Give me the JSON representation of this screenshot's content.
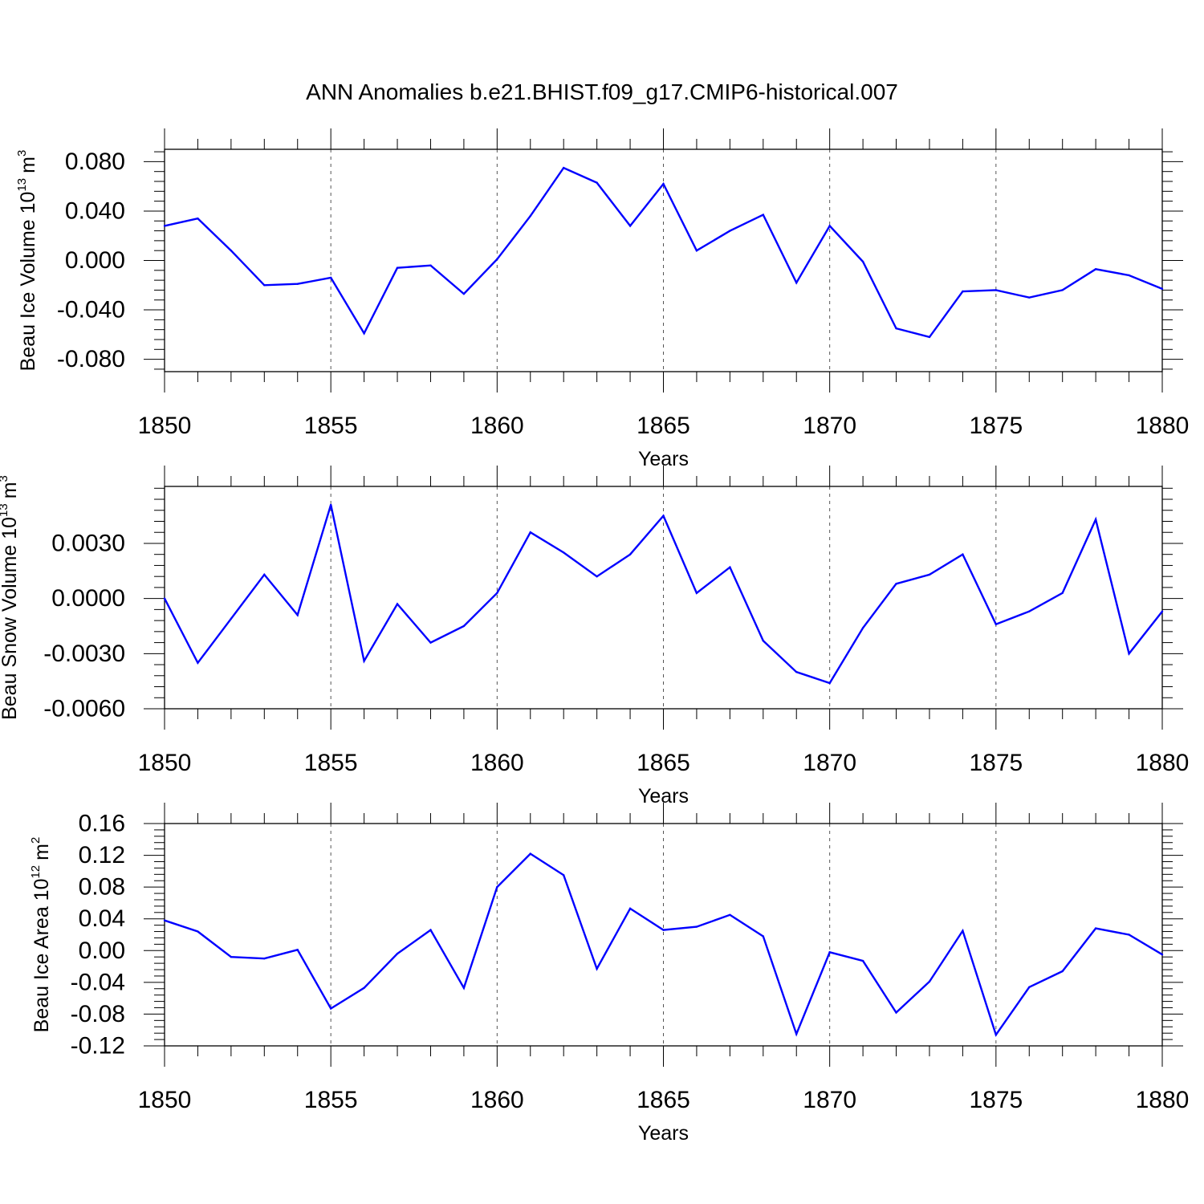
{
  "title": "ANN Anomalies b.e21.BHIST.f09_g17.CMIP6-historical.007",
  "colors": {
    "line": "#0000ff",
    "frame": "#000000",
    "grid": "#555555"
  },
  "chart_data": [
    {
      "type": "line",
      "xlabel": "Years",
      "ylabel_main": "Beau Ice Volume 10",
      "ylabel_exp": "13",
      "ylabel_unit": "m",
      "ylabel_unit_exp": "3",
      "xlim": [
        1850,
        1880
      ],
      "ylim": [
        -0.09,
        0.09
      ],
      "x_ticks": [
        1850,
        1855,
        1860,
        1865,
        1870,
        1875,
        1880
      ],
      "y_ticks": [
        -0.08,
        -0.04,
        0.0,
        0.04,
        0.08
      ],
      "y_tick_labels": [
        "-0.080",
        "-0.040",
        "0.000",
        "0.040",
        "0.080"
      ],
      "x": [
        1850,
        1851,
        1852,
        1853,
        1854,
        1855,
        1856,
        1857,
        1858,
        1859,
        1860,
        1861,
        1862,
        1863,
        1864,
        1865,
        1866,
        1867,
        1868,
        1869,
        1870,
        1871,
        1872,
        1873,
        1874,
        1875,
        1876,
        1877,
        1878,
        1879,
        1880
      ],
      "values": [
        0.028,
        0.034,
        0.008,
        -0.02,
        -0.019,
        -0.014,
        -0.059,
        -0.006,
        -0.004,
        -0.027,
        0.001,
        0.036,
        0.075,
        0.063,
        0.028,
        0.062,
        0.008,
        0.024,
        0.037,
        -0.018,
        0.028,
        -0.001,
        -0.055,
        -0.062,
        -0.025,
        -0.024,
        -0.03,
        -0.024,
        -0.007,
        -0.012,
        -0.023
      ]
    },
    {
      "type": "line",
      "xlabel": "Years",
      "ylabel_main": "Beau Snow Volume 10",
      "ylabel_exp": "13",
      "ylabel_unit": "m",
      "ylabel_unit_exp": "3",
      "xlim": [
        1850,
        1880
      ],
      "ylim": [
        -0.006,
        0.0061
      ],
      "x_ticks": [
        1850,
        1855,
        1860,
        1865,
        1870,
        1875,
        1880
      ],
      "y_ticks": [
        -0.006,
        -0.003,
        0.0,
        0.003
      ],
      "y_tick_labels": [
        "-0.0060",
        "-0.0030",
        "0.0000",
        "0.0030"
      ],
      "x": [
        1850,
        1851,
        1852,
        1853,
        1854,
        1855,
        1856,
        1857,
        1858,
        1859,
        1860,
        1861,
        1862,
        1863,
        1864,
        1865,
        1866,
        1867,
        1868,
        1869,
        1870,
        1871,
        1872,
        1873,
        1874,
        1875,
        1876,
        1877,
        1878,
        1879,
        1880
      ],
      "values": [
        0.0,
        -0.0035,
        -0.0011,
        0.0013,
        -0.0009,
        0.0051,
        -0.0034,
        -0.0003,
        -0.0024,
        -0.0015,
        0.0003,
        0.0036,
        0.0025,
        0.0012,
        0.0024,
        0.0045,
        0.0003,
        0.0017,
        -0.0023,
        -0.004,
        -0.0046,
        -0.0016,
        0.0008,
        0.0013,
        0.0024,
        -0.0014,
        -0.0007,
        0.0003,
        0.0043,
        -0.003,
        -0.0007
      ]
    },
    {
      "type": "line",
      "xlabel": "Years",
      "ylabel_main": "Beau Ice Area 10",
      "ylabel_exp": "12",
      "ylabel_unit": "m",
      "ylabel_unit_exp": "2",
      "xlim": [
        1850,
        1880
      ],
      "ylim": [
        -0.12,
        0.16
      ],
      "x_ticks": [
        1850,
        1855,
        1860,
        1865,
        1870,
        1875,
        1880
      ],
      "y_ticks": [
        -0.12,
        -0.08,
        -0.04,
        0.0,
        0.04,
        0.08,
        0.12,
        0.16
      ],
      "y_tick_labels": [
        "-0.12",
        "-0.08",
        "-0.04",
        "0.00",
        "0.04",
        "0.08",
        "0.12",
        "0.16"
      ],
      "x": [
        1850,
        1851,
        1852,
        1853,
        1854,
        1855,
        1856,
        1857,
        1858,
        1859,
        1860,
        1861,
        1862,
        1863,
        1864,
        1865,
        1866,
        1867,
        1868,
        1869,
        1870,
        1871,
        1872,
        1873,
        1874,
        1875,
        1876,
        1877,
        1878,
        1879,
        1880
      ],
      "values": [
        0.038,
        0.024,
        -0.008,
        -0.01,
        0.001,
        -0.073,
        -0.047,
        -0.004,
        0.026,
        -0.047,
        0.08,
        0.122,
        0.095,
        -0.023,
        0.053,
        0.026,
        0.03,
        0.045,
        0.018,
        -0.105,
        -0.002,
        -0.013,
        -0.078,
        -0.039,
        0.025,
        -0.106,
        -0.046,
        -0.026,
        0.028,
        0.02,
        -0.005
      ]
    }
  ]
}
